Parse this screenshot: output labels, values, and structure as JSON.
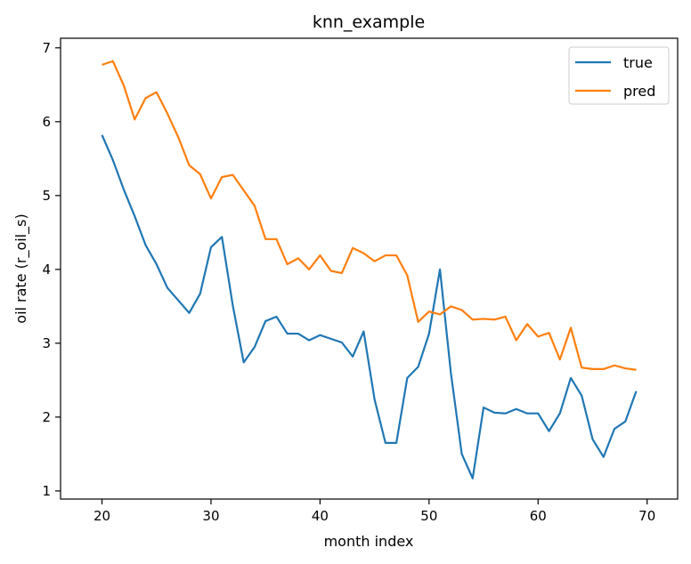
{
  "chart_data": {
    "type": "line",
    "title": "knn_example",
    "xlabel": "month index",
    "ylabel": "oil rate (r_oil_s)",
    "xlim": [
      16.2,
      72.8
    ],
    "ylim": [
      0.89,
      7.13
    ],
    "xticks": [
      20,
      30,
      40,
      50,
      60,
      70
    ],
    "yticks": [
      1,
      2,
      3,
      4,
      5,
      6,
      7
    ],
    "grid": false,
    "legend_position": "top-right",
    "x": [
      20,
      21,
      22,
      23,
      24,
      25,
      26,
      27,
      28,
      29,
      30,
      31,
      32,
      33,
      34,
      35,
      36,
      37,
      38,
      39,
      40,
      41,
      42,
      43,
      44,
      45,
      46,
      47,
      48,
      49,
      50,
      51,
      52,
      53,
      54,
      55,
      56,
      57,
      58,
      59,
      60,
      61,
      62,
      63,
      64,
      65,
      66,
      67,
      68,
      69
    ],
    "series": [
      {
        "name": "true",
        "color": "#1f77b4",
        "values": [
          5.82,
          5.48,
          5.08,
          4.72,
          4.33,
          4.07,
          3.75,
          3.58,
          3.41,
          3.67,
          4.3,
          4.44,
          3.51,
          2.74,
          2.95,
          3.3,
          3.36,
          3.13,
          3.13,
          3.04,
          3.11,
          3.06,
          3.01,
          2.82,
          3.16,
          2.24,
          1.65,
          1.65,
          2.53,
          2.68,
          3.13,
          4.0,
          2.6,
          1.5,
          1.17,
          2.13,
          2.06,
          2.05,
          2.11,
          2.05,
          2.05,
          1.81,
          2.05,
          2.53,
          2.29,
          1.7,
          1.46,
          1.84,
          1.94,
          2.35
        ]
      },
      {
        "name": "pred",
        "color": "#ff7f0e",
        "values": [
          6.77,
          6.82,
          6.49,
          6.03,
          6.32,
          6.4,
          6.11,
          5.79,
          5.41,
          5.29,
          4.96,
          5.25,
          5.28,
          5.07,
          4.86,
          4.41,
          4.41,
          4.07,
          4.15,
          4.0,
          4.19,
          3.98,
          3.95,
          4.29,
          4.22,
          4.11,
          4.19,
          4.19,
          3.92,
          3.29,
          3.43,
          3.39,
          3.5,
          3.45,
          3.32,
          3.33,
          3.32,
          3.36,
          3.04,
          3.26,
          3.09,
          3.14,
          2.78,
          3.21,
          2.67,
          2.65,
          2.65,
          2.7,
          2.66,
          2.64
        ]
      }
    ]
  }
}
